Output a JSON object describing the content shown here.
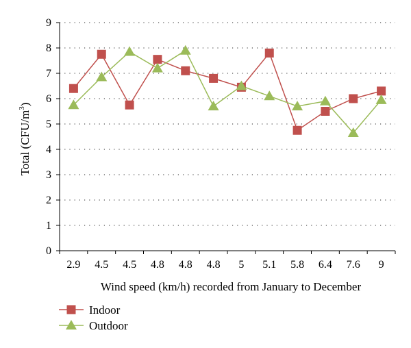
{
  "chart_data": {
    "type": "line",
    "xlabel": "Wind speed (km/h) recorded from January to December",
    "ylabel_main": "Total (CFU/m",
    "ylabel_sup": "3",
    "ylabel_end": ")",
    "ylim": [
      0,
      9
    ],
    "yticks": [
      "0",
      "1",
      "2",
      "3",
      "4",
      "5",
      "6",
      "7",
      "8",
      "9"
    ],
    "categories": [
      "2.9",
      "4.5",
      "4.5",
      "4.8",
      "4.8",
      "4.8",
      "5",
      "5.1",
      "5.8",
      "6.4",
      "7.6",
      "9"
    ],
    "grid": "horizontal-dotted",
    "legend_position": "bottom-left",
    "series": [
      {
        "name": "Indoor",
        "marker": "square",
        "color": "#c0504d",
        "values": [
          6.4,
          7.75,
          5.75,
          7.55,
          7.1,
          6.8,
          6.45,
          7.8,
          4.75,
          5.5,
          6.0,
          6.3
        ]
      },
      {
        "name": "Outdoor",
        "marker": "triangle",
        "color": "#9bbb59",
        "values": [
          5.75,
          6.85,
          7.85,
          7.2,
          7.9,
          5.7,
          6.5,
          6.1,
          5.7,
          5.9,
          4.65,
          5.95
        ]
      }
    ]
  }
}
